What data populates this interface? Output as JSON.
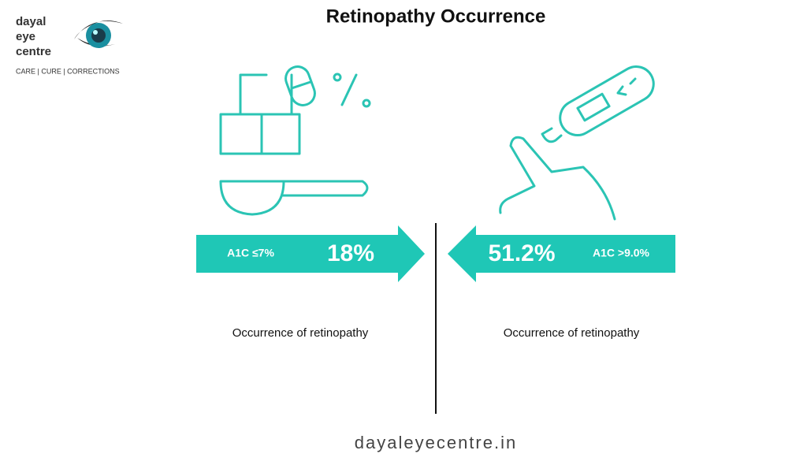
{
  "logo": {
    "lines": [
      "dayal",
      "eye",
      "centre"
    ],
    "tagline": "CARE | CURE | CORRECTIONS"
  },
  "header": {
    "title": "Retinopathy Occurrence"
  },
  "panels": [
    {
      "label": "A1C ≤7%",
      "value": "18%",
      "caption": "Occurrence of retinopathy"
    },
    {
      "label": "A1C >9.0%",
      "value": "51.2%",
      "caption": "Occurrence of retinopathy"
    }
  ],
  "footer": {
    "website": "dayaleyecentre.in"
  }
}
